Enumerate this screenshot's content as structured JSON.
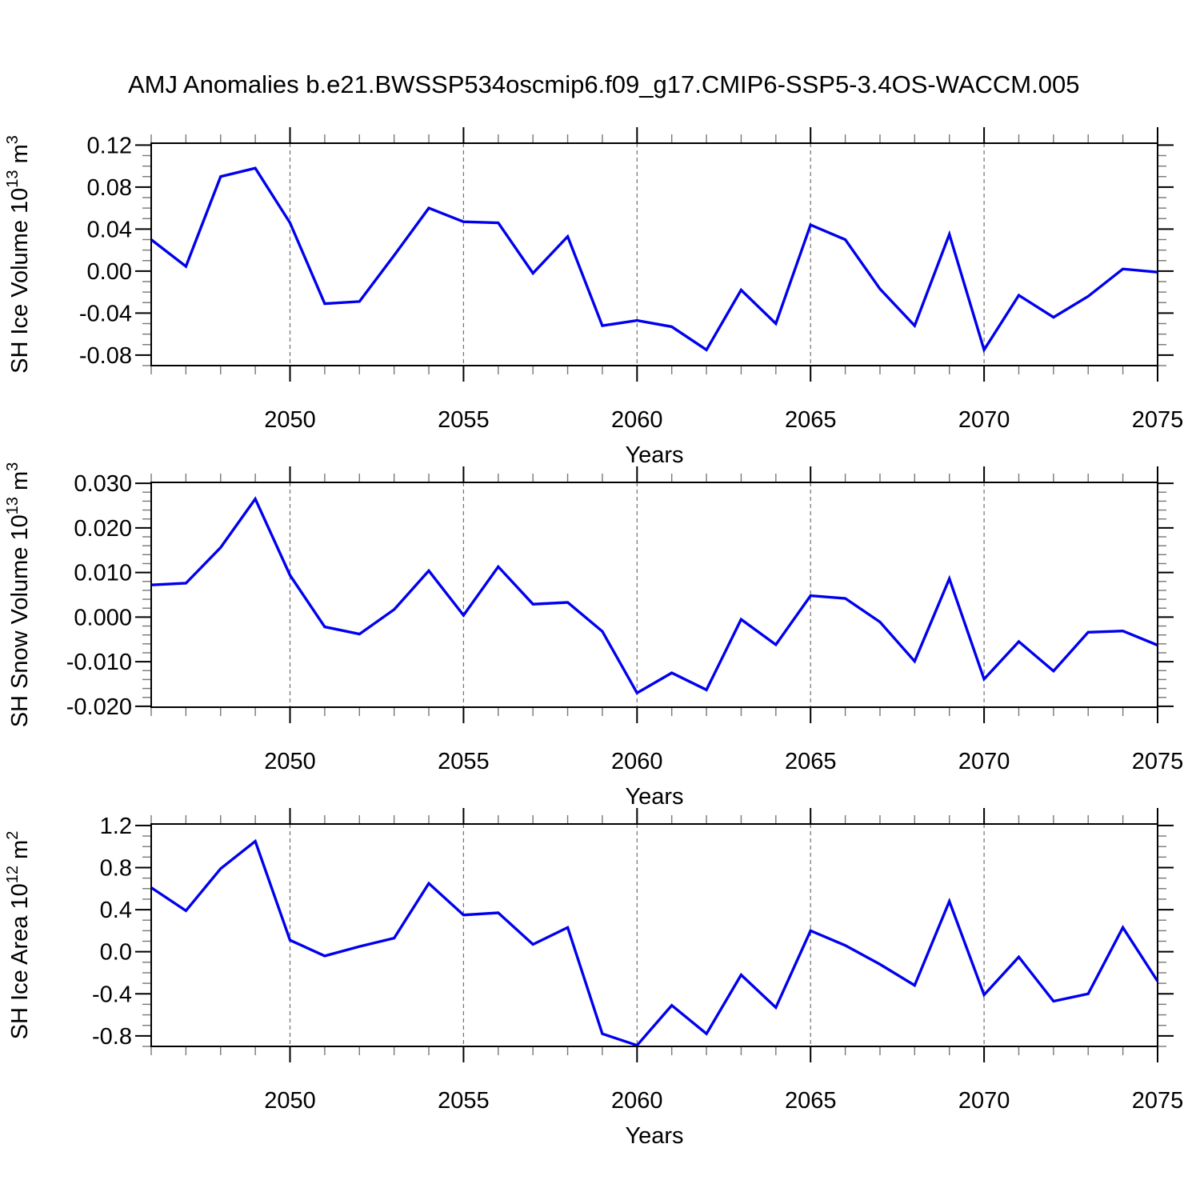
{
  "title": "AMJ Anomalies b.e21.BWSSP534oscmip6.f09_g17.CMIP6-SSP5-3.4OS-WACCM.005",
  "colors": {
    "line": "#0000ee",
    "grid": "#707070",
    "frame": "#000000",
    "minor_tick": "#777777",
    "background": "#ffffff"
  },
  "chart_data": [
    {
      "type": "line",
      "name": "sh-ice-volume",
      "ylabel_parts": [
        {
          "t": "SH Ice Volume 10"
        },
        {
          "t": "13",
          "sup": true
        },
        {
          "t": " m"
        },
        {
          "t": "3",
          "sup": true
        }
      ],
      "xlabel": "Years",
      "xlim": [
        2046,
        2075
      ],
      "ylim": [
        -0.09,
        0.1218
      ],
      "x": [
        2046,
        2047,
        2048,
        2049,
        2050,
        2051,
        2052,
        2053,
        2054,
        2055,
        2056,
        2057,
        2058,
        2059,
        2060,
        2061,
        2062,
        2063,
        2064,
        2065,
        2066,
        2067,
        2068,
        2069,
        2070,
        2071,
        2072,
        2073,
        2074,
        2075
      ],
      "values": [
        0.03,
        0.0045,
        0.09,
        0.098,
        0.046,
        -0.031,
        -0.029,
        0.015,
        0.06,
        0.047,
        0.046,
        -0.002,
        0.033,
        -0.052,
        -0.047,
        -0.053,
        -0.075,
        -0.018,
        -0.05,
        0.044,
        0.03,
        -0.017,
        -0.052,
        0.035,
        -0.075,
        -0.023,
        -0.044,
        -0.024,
        0.002,
        -0.001
      ],
      "yticks": {
        "values": [
          0.12,
          0.08,
          0.04,
          0.0,
          -0.04,
          -0.08
        ],
        "labels": [
          "0.12",
          "0.08",
          "0.04",
          "0.00",
          "-0.04",
          "-0.08"
        ]
      },
      "yminor_step": 0.01,
      "xticks": {
        "values": [
          2050,
          2055,
          2060,
          2065,
          2070,
          2075
        ],
        "labels": [
          "2050",
          "2055",
          "2060",
          "2065",
          "2070",
          "2075"
        ]
      },
      "xminor_step": 1,
      "grid_x": [
        2050,
        2055,
        2060,
        2065,
        2070
      ]
    },
    {
      "type": "line",
      "name": "sh-snow-volume",
      "ylabel_parts": [
        {
          "t": "SH Snow Volume 10"
        },
        {
          "t": "13",
          "sup": true
        },
        {
          "t": " m"
        },
        {
          "t": "3",
          "sup": true
        }
      ],
      "xlabel": "Years",
      "xlim": [
        2046,
        2075
      ],
      "ylim": [
        -0.0202,
        0.0302
      ],
      "x": [
        2046,
        2047,
        2048,
        2049,
        2050,
        2051,
        2052,
        2053,
        2054,
        2055,
        2056,
        2057,
        2058,
        2059,
        2060,
        2061,
        2062,
        2063,
        2064,
        2065,
        2066,
        2067,
        2068,
        2069,
        2070,
        2071,
        2072,
        2073,
        2074,
        2075
      ],
      "values": [
        0.0072,
        0.0076,
        0.0156,
        0.0265,
        0.0094,
        -0.0022,
        -0.0038,
        0.0017,
        0.0104,
        0.0004,
        0.0113,
        0.0029,
        0.0033,
        -0.0032,
        -0.017,
        -0.0125,
        -0.0163,
        -0.0005,
        -0.0062,
        0.0048,
        0.0042,
        -0.0011,
        -0.0099,
        0.0086,
        -0.0139,
        -0.0055,
        -0.0121,
        -0.0034,
        -0.0031,
        -0.0063
      ],
      "yticks": {
        "values": [
          0.03,
          0.02,
          0.01,
          0.0,
          -0.01,
          -0.02
        ],
        "labels": [
          "0.030",
          "0.020",
          "0.010",
          "0.000",
          "-0.010",
          "-0.020"
        ]
      },
      "yminor_step": 0.002,
      "xticks": {
        "values": [
          2050,
          2055,
          2060,
          2065,
          2070,
          2075
        ],
        "labels": [
          "2050",
          "2055",
          "2060",
          "2065",
          "2070",
          "2075"
        ]
      },
      "xminor_step": 1,
      "grid_x": [
        2050,
        2055,
        2060,
        2065,
        2070
      ]
    },
    {
      "type": "line",
      "name": "sh-ice-area",
      "ylabel_parts": [
        {
          "t": "SH Ice Area 10"
        },
        {
          "t": "12",
          "sup": true
        },
        {
          "t": " m"
        },
        {
          "t": "2",
          "sup": true
        }
      ],
      "xlabel": "Years",
      "xlim": [
        2046,
        2075
      ],
      "ylim": [
        -0.9,
        1.2144
      ],
      "x": [
        2046,
        2047,
        2048,
        2049,
        2050,
        2051,
        2052,
        2053,
        2054,
        2055,
        2056,
        2057,
        2058,
        2059,
        2060,
        2061,
        2062,
        2063,
        2064,
        2065,
        2066,
        2067,
        2068,
        2069,
        2070,
        2071,
        2072,
        2073,
        2074,
        2075
      ],
      "values": [
        0.61,
        0.39,
        0.79,
        1.05,
        0.11,
        -0.04,
        0.05,
        0.13,
        0.65,
        0.35,
        0.37,
        0.07,
        0.23,
        -0.78,
        -0.89,
        -0.51,
        -0.78,
        -0.22,
        -0.53,
        0.2,
        0.06,
        -0.12,
        -0.32,
        0.48,
        -0.41,
        -0.05,
        -0.47,
        -0.4,
        0.23,
        -0.28
      ],
      "yticks": {
        "values": [
          1.2,
          0.8,
          0.4,
          0.0,
          -0.4,
          -0.8
        ],
        "labels": [
          "1.2",
          "0.8",
          "0.4",
          "0.0",
          "-0.4",
          "-0.8"
        ]
      },
      "yminor_step": 0.1,
      "xticks": {
        "values": [
          2050,
          2055,
          2060,
          2065,
          2070,
          2075
        ],
        "labels": [
          "2050",
          "2055",
          "2060",
          "2065",
          "2070",
          "2075"
        ]
      },
      "xminor_step": 1,
      "grid_x": [
        2050,
        2055,
        2060,
        2065,
        2070
      ]
    }
  ]
}
